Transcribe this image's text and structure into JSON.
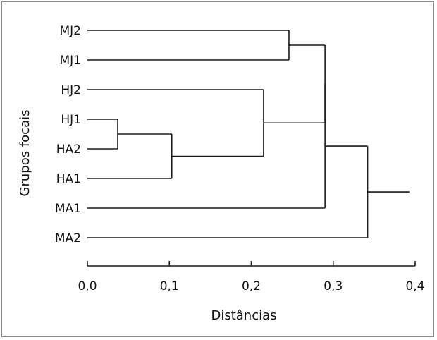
{
  "chart_data": {
    "type": "dendrogram",
    "xlabel": "Distâncias",
    "ylabel": "Grupos focais",
    "xlim": [
      0.0,
      0.4
    ],
    "ticks": [
      {
        "value": 0.0,
        "label": "0,0"
      },
      {
        "value": 0.1,
        "label": "0,1"
      },
      {
        "value": 0.2,
        "label": "0,2"
      },
      {
        "value": 0.3,
        "label": "0,3"
      },
      {
        "value": 0.4,
        "label": "0,4"
      }
    ],
    "leaves": [
      "MJ2",
      "MJ1",
      "HJ2",
      "HJ1",
      "HA2",
      "HA1",
      "MA1",
      "MA2"
    ],
    "merges": [
      {
        "id": "c1",
        "left": "HJ1",
        "right": "HA2",
        "distance": 0.037
      },
      {
        "id": "c2",
        "left": "c1",
        "right": "HA1",
        "distance": 0.103
      },
      {
        "id": "c3",
        "left": "HJ2",
        "right": "c2",
        "distance": 0.215
      },
      {
        "id": "c4",
        "left": "MJ2",
        "right": "MJ1",
        "distance": 0.246
      },
      {
        "id": "c5",
        "left": "c4",
        "right": "c3",
        "distance": 0.29
      },
      {
        "id": "c6",
        "left": "c5",
        "right": "MA1",
        "distance": 0.29
      },
      {
        "id": "c7",
        "left": "c6",
        "right": "MA2",
        "distance": 0.342
      }
    ],
    "root_distance": 0.393,
    "grid": false
  }
}
